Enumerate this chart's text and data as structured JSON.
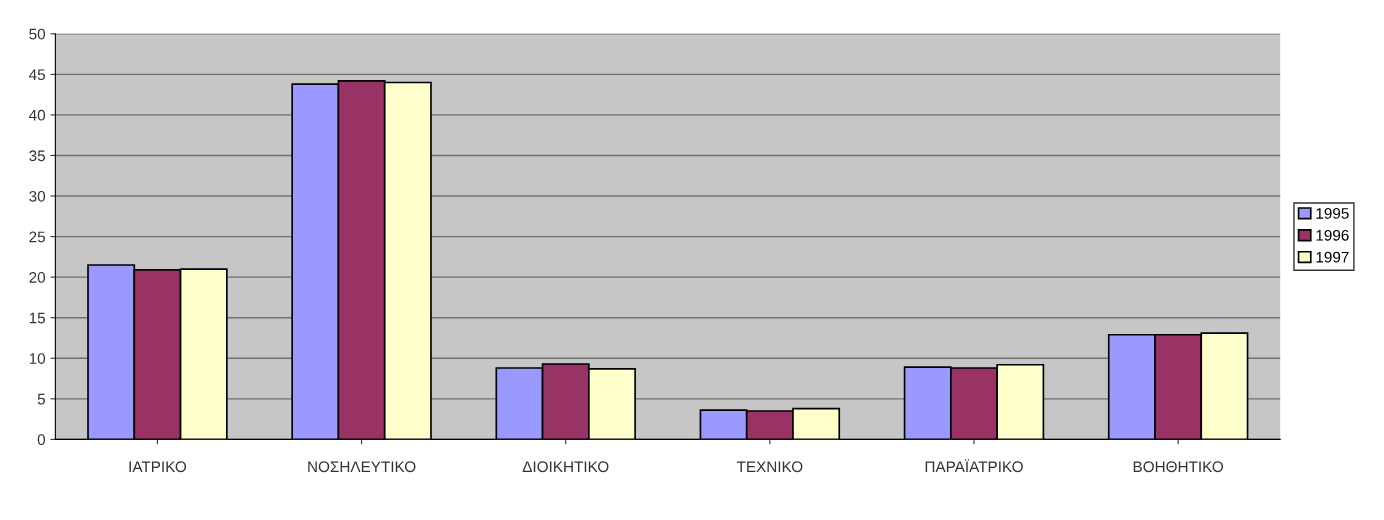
{
  "chart_data": {
    "type": "bar",
    "categories": [
      "ΙΑΤΡΙΚΟ",
      "ΝΟΣΗΛΕΥΤΙΚΟ",
      "ΔΙΟΙΚΗΤΙΚΟ",
      "ΤΕΧΝΙΚΟ",
      "ΠΑΡΑΪΑΤΡΙΚΟ",
      "ΒΟΗΘΗΤΙΚΟ"
    ],
    "series": [
      {
        "name": "1995",
        "color": "#9999ff",
        "values": [
          21.5,
          43.8,
          8.8,
          3.6,
          8.9,
          12.9
        ]
      },
      {
        "name": "1996",
        "color": "#993366",
        "values": [
          20.9,
          44.2,
          9.3,
          3.5,
          8.8,
          12.9
        ]
      },
      {
        "name": "1997",
        "color": "#ffffcc",
        "values": [
          21.0,
          44.0,
          8.7,
          3.8,
          9.2,
          13.1
        ]
      }
    ],
    "ylim": [
      0,
      50
    ],
    "yticks": [
      0,
      5,
      10,
      15,
      20,
      25,
      30,
      35,
      40,
      45,
      50
    ],
    "grid": "y",
    "legend": "right"
  }
}
